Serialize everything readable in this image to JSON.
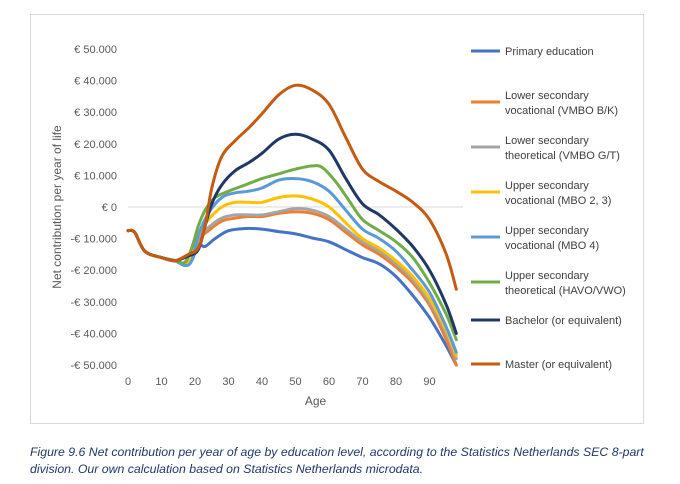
{
  "caption": "Figure 9.6 Net contribution per year of age by education level, according to the Statistics Netherlands SEC 8-part division. Our own calculation based on Statistics Netherlands microdata.",
  "chart_data": {
    "type": "line",
    "title": "",
    "xlabel": "Age",
    "ylabel": "Net contribution per year of life",
    "xlim": [
      0,
      100
    ],
    "ylim": [
      -50000,
      50000
    ],
    "x_ticks": [
      0,
      10,
      20,
      30,
      40,
      50,
      60,
      70,
      80,
      90
    ],
    "y_ticks": [
      {
        "value": 50000,
        "label": "€ 50.000"
      },
      {
        "value": 40000,
        "label": "€ 40.000"
      },
      {
        "value": 30000,
        "label": "€ 30.000"
      },
      {
        "value": 20000,
        "label": "€ 20.000"
      },
      {
        "value": 10000,
        "label": "€ 10.000"
      },
      {
        "value": 0,
        "label": "€ 0"
      },
      {
        "value": -10000,
        "label": "-€ 10.000"
      },
      {
        "value": -20000,
        "label": "-€ 20.000"
      },
      {
        "value": -30000,
        "label": "-€ 30.000"
      },
      {
        "value": -40000,
        "label": "-€ 40.000"
      },
      {
        "value": -50000,
        "label": "-€ 50.000"
      }
    ],
    "grid": false,
    "legend_position": "right",
    "series": [
      {
        "name": "Primary education",
        "legend_lines": [
          "Primary education"
        ],
        "color": "#4472c4",
        "points": [
          [
            0,
            -7500
          ],
          [
            2,
            -8000
          ],
          [
            5,
            -14000
          ],
          [
            10,
            -16000
          ],
          [
            14,
            -17000
          ],
          [
            17,
            -18500
          ],
          [
            19,
            -17000
          ],
          [
            21,
            -12000
          ],
          [
            23,
            -12500
          ],
          [
            26,
            -10000
          ],
          [
            30,
            -7500
          ],
          [
            35,
            -6800
          ],
          [
            40,
            -7000
          ],
          [
            45,
            -7800
          ],
          [
            50,
            -8500
          ],
          [
            55,
            -9800
          ],
          [
            60,
            -11000
          ],
          [
            65,
            -13500
          ],
          [
            70,
            -16000
          ],
          [
            75,
            -18000
          ],
          [
            80,
            -22000
          ],
          [
            85,
            -28000
          ],
          [
            90,
            -35000
          ],
          [
            95,
            -44000
          ],
          [
            98,
            -50000
          ]
        ]
      },
      {
        "name": "Lower secondary vocational (VMBO B/K)",
        "legend_lines": [
          "Lower secondary",
          "vocational (VMBO B/K)"
        ],
        "color": "#ed7d31",
        "points": [
          [
            0,
            -7500
          ],
          [
            2,
            -8000
          ],
          [
            5,
            -14000
          ],
          [
            10,
            -16000
          ],
          [
            14,
            -17000
          ],
          [
            17,
            -18000
          ],
          [
            19,
            -16500
          ],
          [
            21,
            -10500
          ],
          [
            24,
            -7500
          ],
          [
            28,
            -4500
          ],
          [
            32,
            -3500
          ],
          [
            36,
            -3000
          ],
          [
            40,
            -3000
          ],
          [
            45,
            -2000
          ],
          [
            50,
            -1500
          ],
          [
            55,
            -2000
          ],
          [
            60,
            -4000
          ],
          [
            65,
            -8000
          ],
          [
            70,
            -12000
          ],
          [
            75,
            -15000
          ],
          [
            80,
            -19000
          ],
          [
            85,
            -24000
          ],
          [
            90,
            -31000
          ],
          [
            95,
            -42000
          ],
          [
            98,
            -50000
          ]
        ]
      },
      {
        "name": "Lower secondary theoretical (VMBO G/T)",
        "legend_lines": [
          "Lower secondary",
          "theoretical (VMBO G/T)"
        ],
        "color": "#a5a5a5",
        "points": [
          [
            0,
            -7500
          ],
          [
            2,
            -8000
          ],
          [
            5,
            -14000
          ],
          [
            10,
            -16000
          ],
          [
            14,
            -17000
          ],
          [
            17,
            -18000
          ],
          [
            19,
            -16500
          ],
          [
            21,
            -10000
          ],
          [
            24,
            -6500
          ],
          [
            28,
            -3500
          ],
          [
            32,
            -2500
          ],
          [
            36,
            -2500
          ],
          [
            40,
            -2500
          ],
          [
            45,
            -1500
          ],
          [
            50,
            -500
          ],
          [
            55,
            -1000
          ],
          [
            60,
            -3000
          ],
          [
            65,
            -7000
          ],
          [
            70,
            -11000
          ],
          [
            75,
            -14000
          ],
          [
            80,
            -18000
          ],
          [
            85,
            -23000
          ],
          [
            90,
            -30000
          ],
          [
            95,
            -40000
          ],
          [
            98,
            -48000
          ]
        ]
      },
      {
        "name": "Upper secondary vocational (MBO 2, 3)",
        "legend_lines": [
          "Upper secondary",
          "vocational (MBO 2, 3)"
        ],
        "color": "#ffc000",
        "points": [
          [
            0,
            -7500
          ],
          [
            2,
            -8000
          ],
          [
            5,
            -14000
          ],
          [
            10,
            -16000
          ],
          [
            14,
            -17000
          ],
          [
            17,
            -18000
          ],
          [
            19,
            -16000
          ],
          [
            21,
            -9000
          ],
          [
            24,
            -4000
          ],
          [
            28,
            0
          ],
          [
            32,
            1500
          ],
          [
            36,
            1500
          ],
          [
            40,
            1500
          ],
          [
            45,
            3000
          ],
          [
            50,
            3500
          ],
          [
            55,
            2500
          ],
          [
            60,
            0
          ],
          [
            65,
            -5000
          ],
          [
            70,
            -10000
          ],
          [
            75,
            -13000
          ],
          [
            80,
            -17000
          ],
          [
            85,
            -22000
          ],
          [
            90,
            -29000
          ],
          [
            95,
            -39000
          ],
          [
            98,
            -47000
          ]
        ]
      },
      {
        "name": "Upper secondary vocational (MBO 4)",
        "legend_lines": [
          "Upper secondary",
          "vocational (MBO 4)"
        ],
        "color": "#5b9bd5",
        "points": [
          [
            0,
            -7500
          ],
          [
            2,
            -8000
          ],
          [
            5,
            -14000
          ],
          [
            10,
            -16000
          ],
          [
            14,
            -17000
          ],
          [
            17,
            -18500
          ],
          [
            19,
            -17000
          ],
          [
            21,
            -9000
          ],
          [
            24,
            -2000
          ],
          [
            28,
            3000
          ],
          [
            32,
            4500
          ],
          [
            36,
            5000
          ],
          [
            40,
            6000
          ],
          [
            45,
            8500
          ],
          [
            50,
            9000
          ],
          [
            55,
            8000
          ],
          [
            60,
            5000
          ],
          [
            65,
            -1000
          ],
          [
            70,
            -7000
          ],
          [
            75,
            -10000
          ],
          [
            80,
            -14000
          ],
          [
            85,
            -20000
          ],
          [
            90,
            -27000
          ],
          [
            95,
            -38000
          ],
          [
            98,
            -46000
          ]
        ]
      },
      {
        "name": "Upper secondary theoretical (HAVO/VWO)",
        "legend_lines": [
          "Upper secondary",
          "theoretical (HAVO/VWO)"
        ],
        "color": "#70ad47",
        "points": [
          [
            0,
            -7500
          ],
          [
            2,
            -8000
          ],
          [
            5,
            -14000
          ],
          [
            10,
            -16000
          ],
          [
            14,
            -17000
          ],
          [
            17,
            -17500
          ],
          [
            19,
            -13000
          ],
          [
            21,
            -6000
          ],
          [
            23,
            -1000
          ],
          [
            26,
            3000
          ],
          [
            30,
            5000
          ],
          [
            35,
            7000
          ],
          [
            40,
            9000
          ],
          [
            45,
            10500
          ],
          [
            50,
            12000
          ],
          [
            55,
            13000
          ],
          [
            58,
            12500
          ],
          [
            62,
            8000
          ],
          [
            66,
            2000
          ],
          [
            70,
            -4000
          ],
          [
            75,
            -7500
          ],
          [
            80,
            -11000
          ],
          [
            85,
            -16000
          ],
          [
            90,
            -24000
          ],
          [
            95,
            -34000
          ],
          [
            98,
            -42000
          ]
        ]
      },
      {
        "name": "Bachelor (or equivalent)",
        "legend_lines": [
          "Bachelor (or equivalent)"
        ],
        "color": "#203864",
        "points": [
          [
            0,
            -7500
          ],
          [
            2,
            -8000
          ],
          [
            5,
            -14000
          ],
          [
            10,
            -16000
          ],
          [
            14,
            -17000
          ],
          [
            18,
            -15500
          ],
          [
            21,
            -13500
          ],
          [
            23,
            -6000
          ],
          [
            25,
            1000
          ],
          [
            28,
            7000
          ],
          [
            32,
            11500
          ],
          [
            36,
            14000
          ],
          [
            40,
            17000
          ],
          [
            45,
            21500
          ],
          [
            50,
            23000
          ],
          [
            55,
            21500
          ],
          [
            60,
            18000
          ],
          [
            65,
            9000
          ],
          [
            70,
            1000
          ],
          [
            75,
            -2500
          ],
          [
            80,
            -7000
          ],
          [
            85,
            -12500
          ],
          [
            90,
            -20000
          ],
          [
            95,
            -31000
          ],
          [
            98,
            -40000
          ]
        ]
      },
      {
        "name": "Master (or equivalent)",
        "legend_lines": [
          "Master (or equivalent)"
        ],
        "color": "#c55a11",
        "points": [
          [
            0,
            -7500
          ],
          [
            2,
            -8000
          ],
          [
            5,
            -14000
          ],
          [
            10,
            -16000
          ],
          [
            14,
            -17000
          ],
          [
            18,
            -15000
          ],
          [
            21,
            -13000
          ],
          [
            23,
            -6000
          ],
          [
            25,
            6000
          ],
          [
            28,
            16000
          ],
          [
            32,
            21000
          ],
          [
            36,
            25000
          ],
          [
            40,
            29500
          ],
          [
            45,
            35500
          ],
          [
            50,
            38500
          ],
          [
            55,
            37000
          ],
          [
            60,
            32500
          ],
          [
            65,
            22000
          ],
          [
            70,
            12000
          ],
          [
            75,
            8000
          ],
          [
            80,
            5000
          ],
          [
            85,
            1500
          ],
          [
            90,
            -4000
          ],
          [
            95,
            -15000
          ],
          [
            98,
            -26000
          ]
        ]
      }
    ]
  }
}
